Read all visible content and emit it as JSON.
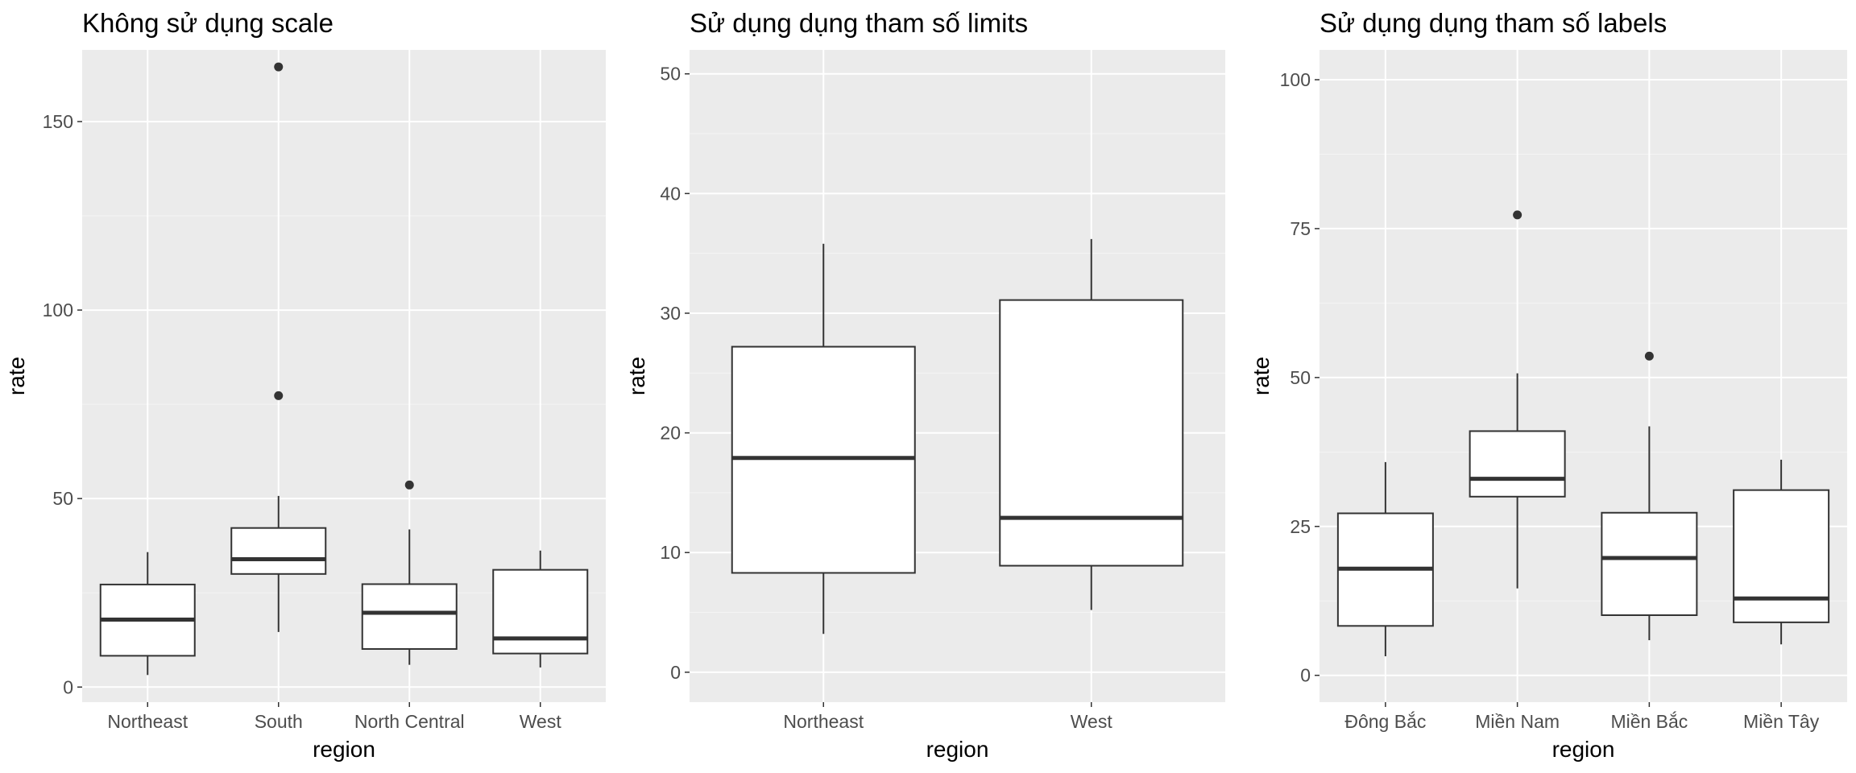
{
  "colors": {
    "panel_background": "#ebebeb",
    "grid_major": "#ffffff",
    "grid_minor": "#f4f4f4",
    "box_fill": "#ffffff",
    "box_stroke": "#333333",
    "tick_text": "#4d4d4d"
  },
  "chart_data": [
    {
      "type": "boxplot",
      "title": "Không sử dụng scale",
      "xlabel": "region",
      "ylabel": "rate",
      "ylim": [
        -4,
        169
      ],
      "yticks": [
        0,
        50,
        100,
        150
      ],
      "ytick_labels": [
        "0",
        "50",
        "100",
        "150"
      ],
      "grid": true,
      "categories": [
        "Northeast",
        "South",
        "North Central",
        "West"
      ],
      "boxes": [
        {
          "category": "Northeast",
          "whisker_low": 3.2,
          "q1": 8.3,
          "median": 17.9,
          "q3": 27.2,
          "whisker_high": 35.8,
          "outliers": []
        },
        {
          "category": "South",
          "whisker_low": 14.6,
          "q1": 30.0,
          "median": 33.9,
          "q3": 42.2,
          "whisker_high": 50.7,
          "outliers": [
            77.3,
            164.5
          ]
        },
        {
          "category": "North Central",
          "whisker_low": 5.9,
          "q1": 10.1,
          "median": 19.7,
          "q3": 27.3,
          "whisker_high": 41.8,
          "outliers": [
            53.6
          ]
        },
        {
          "category": "West",
          "whisker_low": 5.2,
          "q1": 8.9,
          "median": 12.9,
          "q3": 31.1,
          "whisker_high": 36.2,
          "outliers": []
        }
      ]
    },
    {
      "type": "boxplot",
      "title": "Sử dụng dụng tham số limits",
      "xlabel": "region",
      "ylabel": "rate",
      "ylim": [
        -2.5,
        52
      ],
      "yticks": [
        0,
        10,
        20,
        30,
        40,
        50
      ],
      "ytick_labels": [
        "0",
        "10",
        "20",
        "30",
        "40",
        "50"
      ],
      "grid": true,
      "categories": [
        "Northeast",
        "West"
      ],
      "boxes": [
        {
          "category": "Northeast",
          "whisker_low": 3.2,
          "q1": 8.3,
          "median": 17.9,
          "q3": 27.2,
          "whisker_high": 35.8,
          "outliers": []
        },
        {
          "category": "West",
          "whisker_low": 5.2,
          "q1": 8.9,
          "median": 12.9,
          "q3": 31.1,
          "whisker_high": 36.2,
          "outliers": []
        }
      ]
    },
    {
      "type": "boxplot",
      "title": "Sử dụng dụng tham số labels",
      "xlabel": "region",
      "ylabel": "rate",
      "ylim": [
        -4.5,
        105
      ],
      "yticks": [
        0,
        25,
        50,
        75,
        100
      ],
      "ytick_labels": [
        "0",
        "25",
        "50",
        "75",
        "100"
      ],
      "grid": true,
      "categories": [
        "Đông Bắc",
        "Miền Nam",
        "Miền Bắc",
        "Miền Tây"
      ],
      "boxes": [
        {
          "category": "Đông Bắc",
          "whisker_low": 3.2,
          "q1": 8.3,
          "median": 17.9,
          "q3": 27.2,
          "whisker_high": 35.8,
          "outliers": []
        },
        {
          "category": "Miền Nam",
          "whisker_low": 14.6,
          "q1": 30.0,
          "median": 33.0,
          "q3": 41.0,
          "whisker_high": 50.7,
          "outliers": [
            77.3
          ]
        },
        {
          "category": "Miền Bắc",
          "whisker_low": 5.9,
          "q1": 10.1,
          "median": 19.7,
          "q3": 27.3,
          "whisker_high": 41.8,
          "outliers": [
            53.6
          ]
        },
        {
          "category": "Miền Tây",
          "whisker_low": 5.2,
          "q1": 8.9,
          "median": 12.9,
          "q3": 31.1,
          "whisker_high": 36.2,
          "outliers": []
        }
      ]
    }
  ]
}
